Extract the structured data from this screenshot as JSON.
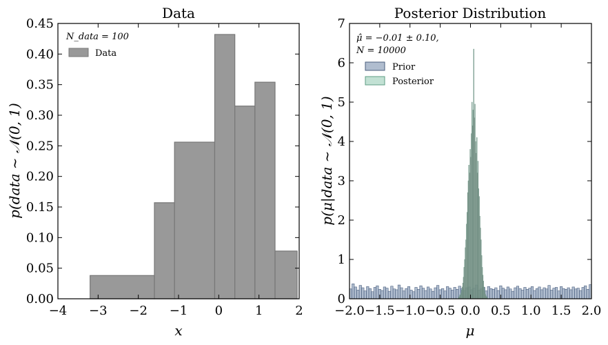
{
  "chart_data": [
    {
      "type": "histogram",
      "title": "Data",
      "xlabel": "x",
      "ylabel": "p(data ~ 𝒩(0, 1)",
      "xlim": [
        -4,
        2
      ],
      "ylim": [
        0,
        0.45
      ],
      "xticks": [
        "−4",
        "−3",
        "−2",
        "−1",
        "0",
        "1",
        "2"
      ],
      "yticks": [
        "0.00",
        "0.05",
        "0.10",
        "0.15",
        "0.20",
        "0.25",
        "0.30",
        "0.35",
        "0.40",
        "0.45"
      ],
      "annotation": "N_data = 100",
      "legend": {
        "placement": "top-left",
        "entries": [
          "Data"
        ]
      },
      "colors": {
        "fill": "#999999",
        "edge": "#777777"
      },
      "bin_edges": [
        -3.2,
        -1.6,
        -1.1,
        -0.1,
        0.4,
        0.9,
        1.4,
        1.95
      ],
      "values": [
        0.038,
        0.157,
        0.256,
        0.432,
        0.315,
        0.354,
        0.078
      ]
    },
    {
      "type": "histogram",
      "title": "Posterior Distribution",
      "xlabel": "μ",
      "ylabel": "p(μ|data ~ 𝒩(0, 1)",
      "xlim": [
        -2.0,
        2.0
      ],
      "ylim": [
        0,
        7
      ],
      "xticks": [
        "−2.0",
        "−1.5",
        "−1.0",
        "−0.5",
        "0.0",
        "0.5",
        "1.0",
        "1.5",
        "2.0"
      ],
      "yticks": [
        "0",
        "1",
        "2",
        "3",
        "4",
        "5",
        "6",
        "7"
      ],
      "annotation_line1": "μ̂ = −0.01 ± 0.10,",
      "annotation_line2": "N = 10000",
      "legend": {
        "placement": "top-left",
        "entries": [
          "Prior",
          "Posterior"
        ]
      },
      "colors": {
        "prior_fill": "#6f86a8",
        "prior_edge": "#4a5e7e",
        "posterior_fill": "#8fc8b0",
        "posterior_edge": "#5e9c83",
        "overlay": "#777777"
      },
      "series": [
        {
          "name": "Prior",
          "x_start": -2.0,
          "bin_width": 0.04,
          "values": [
            0.25,
            0.38,
            0.3,
            0.22,
            0.34,
            0.28,
            0.2,
            0.31,
            0.26,
            0.18,
            0.29,
            0.33,
            0.24,
            0.21,
            0.3,
            0.27,
            0.19,
            0.32,
            0.25,
            0.23,
            0.35,
            0.28,
            0.2,
            0.26,
            0.31,
            0.22,
            0.18,
            0.29,
            0.24,
            0.33,
            0.27,
            0.21,
            0.3,
            0.25,
            0.19,
            0.28,
            0.34,
            0.23,
            0.26,
            0.2,
            0.31,
            0.27,
            0.22,
            0.29,
            0.24,
            0.32,
            0.26,
            0.21,
            0.28,
            0.3,
            0.23,
            0.27,
            0.35,
            0.22,
            0.25,
            0.29,
            0.2,
            0.31,
            0.26,
            0.24,
            0.28,
            0.21,
            0.33,
            0.27,
            0.23,
            0.3,
            0.25,
            0.19,
            0.28,
            0.32,
            0.26,
            0.22,
            0.29,
            0.24,
            0.27,
            0.31,
            0.21,
            0.26,
            0.3,
            0.23,
            0.28,
            0.25,
            0.34,
            0.22,
            0.27,
            0.29,
            0.2,
            0.31,
            0.26,
            0.24,
            0.28,
            0.23,
            0.3,
            0.25,
            0.27,
            0.21,
            0.29,
            0.33,
            0.24,
            0.36
          ]
        },
        {
          "name": "Posterior",
          "x_start": -0.2,
          "bin_width": 0.01,
          "values": [
            0.03,
            0.05,
            0.1,
            0.08,
            0.15,
            0.22,
            0.3,
            0.4,
            0.55,
            0.8,
            1.0,
            1.3,
            1.5,
            1.9,
            2.2,
            2.7,
            3.0,
            3.4,
            3.2,
            3.8,
            3.6,
            4.2,
            5.0,
            4.4,
            4.8,
            6.35,
            4.6,
            4.95,
            4.0,
            3.7,
            4.1,
            3.2,
            3.5,
            2.8,
            2.6,
            2.1,
            1.8,
            1.5,
            1.1,
            0.8,
            0.6,
            0.45,
            0.3,
            0.2,
            0.12,
            0.08,
            0.05,
            0.03
          ]
        }
      ]
    }
  ]
}
